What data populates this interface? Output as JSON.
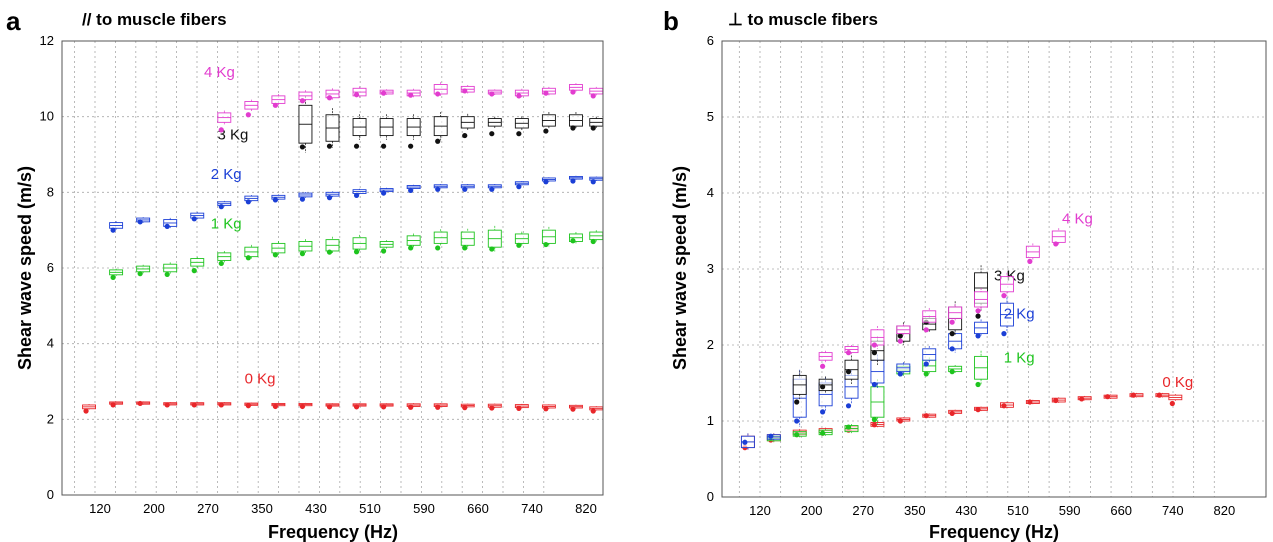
{
  "chart_data": [
    {
      "type": "box",
      "panel": "a",
      "title": "// to muscle fibers",
      "xlabel": "Frequency (Hz)",
      "ylabel": "Shear wave speed (m/s)",
      "ylim": [
        0,
        12
      ],
      "yticks": [
        0,
        2,
        4,
        6,
        8,
        10,
        12
      ],
      "xlim": [
        80,
        880
      ],
      "xticks": [
        "120",
        "200",
        "270",
        "350",
        "430",
        "510",
        "590",
        "660",
        "740",
        "820"
      ],
      "grid": true,
      "series": [
        {
          "name": "0 Kg",
          "color": "#e8262a",
          "label_at": [
            350,
            2.95
          ],
          "x": [
            120,
            160,
            200,
            240,
            280,
            320,
            360,
            400,
            440,
            480,
            520,
            560,
            600,
            640,
            680,
            720,
            760,
            800,
            840,
            870
          ],
          "boxes": [
            [
              2.28,
              2.38
            ],
            [
              2.4,
              2.46
            ],
            [
              2.4,
              2.46
            ],
            [
              2.38,
              2.44
            ],
            [
              2.38,
              2.44
            ],
            [
              2.38,
              2.44
            ],
            [
              2.37,
              2.43
            ],
            [
              2.36,
              2.42
            ],
            [
              2.36,
              2.42
            ],
            [
              2.35,
              2.41
            ],
            [
              2.35,
              2.41
            ],
            [
              2.35,
              2.41
            ],
            [
              2.34,
              2.41
            ],
            [
              2.34,
              2.41
            ],
            [
              2.33,
              2.4
            ],
            [
              2.32,
              2.4
            ],
            [
              2.31,
              2.39
            ],
            [
              2.3,
              2.38
            ],
            [
              2.3,
              2.37
            ],
            [
              2.25,
              2.33
            ]
          ],
          "points": [
            2.22,
            2.38,
            2.42,
            2.38,
            2.38,
            2.38,
            2.36,
            2.34,
            2.34,
            2.33,
            2.33,
            2.33,
            2.32,
            2.32,
            2.31,
            2.3,
            2.29,
            2.28,
            2.27,
            2.22
          ]
        },
        {
          "name": "1 Kg",
          "color": "#1ec41e",
          "label_at": [
            300,
            7.05
          ],
          "x": [
            160,
            200,
            240,
            280,
            320,
            360,
            400,
            440,
            480,
            520,
            560,
            600,
            640,
            680,
            720,
            760,
            800,
            840,
            870
          ],
          "boxes": [
            [
              5.82,
              5.95
            ],
            [
              5.9,
              6.05
            ],
            [
              5.9,
              6.1
            ],
            [
              6.05,
              6.25
            ],
            [
              6.2,
              6.4
            ],
            [
              6.3,
              6.55
            ],
            [
              6.4,
              6.65
            ],
            [
              6.45,
              6.7
            ],
            [
              6.45,
              6.75
            ],
            [
              6.5,
              6.8
            ],
            [
              6.55,
              6.7
            ],
            [
              6.6,
              6.85
            ],
            [
              6.65,
              6.95
            ],
            [
              6.6,
              6.95
            ],
            [
              6.55,
              7.0
            ],
            [
              6.65,
              6.9
            ],
            [
              6.65,
              7.0
            ],
            [
              6.7,
              6.9
            ],
            [
              6.75,
              6.95
            ]
          ],
          "points": [
            5.75,
            5.85,
            5.83,
            5.93,
            6.12,
            6.27,
            6.35,
            6.38,
            6.42,
            6.43,
            6.45,
            6.53,
            6.53,
            6.53,
            6.5,
            6.6,
            6.62,
            6.72,
            6.7
          ]
        },
        {
          "name": "2 Kg",
          "color": "#1b3fd6",
          "label_at": [
            300,
            8.35
          ],
          "x": [
            160,
            200,
            240,
            280,
            320,
            360,
            400,
            440,
            480,
            520,
            560,
            600,
            640,
            680,
            720,
            760,
            800,
            840,
            870
          ],
          "boxes": [
            [
              7.05,
              7.2
            ],
            [
              7.22,
              7.32
            ],
            [
              7.1,
              7.28
            ],
            [
              7.32,
              7.45
            ],
            [
              7.65,
              7.75
            ],
            [
              7.78,
              7.9
            ],
            [
              7.82,
              7.92
            ],
            [
              7.88,
              7.98
            ],
            [
              7.9,
              8.0
            ],
            [
              7.97,
              8.07
            ],
            [
              8.02,
              8.1
            ],
            [
              8.1,
              8.18
            ],
            [
              8.12,
              8.2
            ],
            [
              8.12,
              8.2
            ],
            [
              8.12,
              8.2
            ],
            [
              8.2,
              8.28
            ],
            [
              8.3,
              8.38
            ],
            [
              8.35,
              8.42
            ],
            [
              8.32,
              8.4
            ]
          ],
          "points": [
            7.0,
            7.22,
            7.1,
            7.3,
            7.62,
            7.75,
            7.8,
            7.82,
            7.86,
            7.92,
            7.98,
            8.05,
            8.08,
            8.08,
            8.08,
            8.15,
            8.28,
            8.3,
            8.28
          ]
        },
        {
          "name": "3 Kg",
          "color": "#111111",
          "label_at": [
            310,
            9.4
          ],
          "x": [
            440,
            480,
            520,
            560,
            600,
            640,
            680,
            720,
            760,
            800,
            840,
            870
          ],
          "boxes": [
            [
              9.3,
              10.3
            ],
            [
              9.35,
              10.05
            ],
            [
              9.5,
              9.95
            ],
            [
              9.5,
              9.95
            ],
            [
              9.5,
              9.95
            ],
            [
              9.5,
              10.0
            ],
            [
              9.7,
              10.0
            ],
            [
              9.75,
              9.95
            ],
            [
              9.7,
              9.95
            ],
            [
              9.75,
              10.05
            ],
            [
              9.75,
              10.05
            ],
            [
              9.75,
              9.95
            ]
          ],
          "points": [
            9.2,
            9.22,
            9.22,
            9.22,
            9.22,
            9.35,
            9.5,
            9.55,
            9.55,
            9.62,
            9.7,
            9.7
          ]
        },
        {
          "name": "4 Kg",
          "color": "#e23ccf",
          "label_at": [
            290,
            11.05
          ],
          "x": [
            320,
            360,
            400,
            440,
            480,
            520,
            560,
            600,
            640,
            680,
            720,
            760,
            800,
            840,
            870
          ],
          "boxes": [
            [
              9.85,
              10.1
            ],
            [
              10.2,
              10.4
            ],
            [
              10.35,
              10.55
            ],
            [
              10.45,
              10.65
            ],
            [
              10.5,
              10.7
            ],
            [
              10.55,
              10.75
            ],
            [
              10.6,
              10.7
            ],
            [
              10.55,
              10.7
            ],
            [
              10.6,
              10.85
            ],
            [
              10.65,
              10.8
            ],
            [
              10.6,
              10.7
            ],
            [
              10.55,
              10.7
            ],
            [
              10.6,
              10.75
            ],
            [
              10.7,
              10.85
            ],
            [
              10.6,
              10.75
            ]
          ],
          "points": [
            9.65,
            10.05,
            10.3,
            10.42,
            10.5,
            10.58,
            10.62,
            10.57,
            10.6,
            10.68,
            10.6,
            10.55,
            10.62,
            10.65,
            10.55
          ]
        }
      ]
    },
    {
      "type": "box",
      "panel": "b",
      "title": "⊥ to muscle fibers",
      "xlabel": "Frequency (Hz)",
      "ylabel": "Shear wave speed (m/s)",
      "ylim": [
        0,
        6
      ],
      "yticks": [
        0,
        1,
        2,
        3,
        4,
        5,
        6
      ],
      "xlim": [
        40,
        880
      ],
      "xticks": [
        "120",
        "200",
        "270",
        "350",
        "430",
        "510",
        "590",
        "660",
        "740",
        "820"
      ],
      "grid": true,
      "series": [
        {
          "name": "0 Kg",
          "color": "#e8262a",
          "label_at": [
            720,
            1.45
          ],
          "x": [
            80,
            120,
            160,
            200,
            240,
            280,
            320,
            360,
            400,
            440,
            480,
            520,
            560,
            600,
            640,
            680,
            720,
            740
          ],
          "boxes": [
            [
              0.65,
              0.8
            ],
            [
              0.74,
              0.82
            ],
            [
              0.82,
              0.88
            ],
            [
              0.85,
              0.9
            ],
            [
              0.88,
              0.93
            ],
            [
              0.93,
              0.98
            ],
            [
              1.0,
              1.04
            ],
            [
              1.05,
              1.09
            ],
            [
              1.1,
              1.14
            ],
            [
              1.14,
              1.18
            ],
            [
              1.18,
              1.24
            ],
            [
              1.23,
              1.27
            ],
            [
              1.25,
              1.3
            ],
            [
              1.28,
              1.32
            ],
            [
              1.3,
              1.34
            ],
            [
              1.32,
              1.36
            ],
            [
              1.32,
              1.36
            ],
            [
              1.28,
              1.34
            ]
          ],
          "points": [
            0.65,
            0.75,
            0.82,
            0.84,
            0.88,
            0.95,
            1.0,
            1.07,
            1.1,
            1.15,
            1.2,
            1.25,
            1.27,
            1.29,
            1.32,
            1.34,
            1.34,
            1.23
          ]
        },
        {
          "name": "1 Kg",
          "color": "#1ec41e",
          "label_at": [
            475,
            1.77
          ],
          "x": [
            120,
            160,
            200,
            240,
            280,
            320,
            360,
            400,
            440
          ],
          "boxes": [
            [
              0.74,
              0.8
            ],
            [
              0.8,
              0.86
            ],
            [
              0.82,
              0.88
            ],
            [
              0.86,
              0.94
            ],
            [
              1.05,
              1.45
            ],
            [
              1.62,
              1.72
            ],
            [
              1.65,
              1.8
            ],
            [
              1.65,
              1.72
            ],
            [
              1.55,
              1.85
            ]
          ],
          "points": [
            0.78,
            0.82,
            0.84,
            0.92,
            1.02,
            1.62,
            1.62,
            1.65,
            1.48
          ]
        },
        {
          "name": "2 Kg",
          "color": "#1b3fd6",
          "label_at": [
            475,
            2.35
          ],
          "x": [
            80,
            120,
            160,
            200,
            240,
            280,
            320,
            360,
            400,
            440,
            480
          ],
          "boxes": [
            [
              0.65,
              0.8
            ],
            [
              0.76,
              0.82
            ],
            [
              1.05,
              1.55
            ],
            [
              1.2,
              1.5
            ],
            [
              1.3,
              1.6
            ],
            [
              1.5,
              1.8
            ],
            [
              1.65,
              1.75
            ],
            [
              1.8,
              1.95
            ],
            [
              1.95,
              2.15
            ],
            [
              2.15,
              2.3
            ],
            [
              2.25,
              2.55
            ]
          ],
          "points": [
            0.72,
            0.8,
            1.0,
            1.12,
            1.2,
            1.48,
            1.62,
            1.75,
            1.95,
            2.12,
            2.15
          ]
        },
        {
          "name": "3 Kg",
          "color": "#111111",
          "label_at": [
            460,
            2.85
          ],
          "x": [
            160,
            200,
            240,
            280,
            320,
            360,
            400,
            440
          ],
          "boxes": [
            [
              1.35,
              1.6
            ],
            [
              1.4,
              1.55
            ],
            [
              1.55,
              1.8
            ],
            [
              1.8,
              2.05
            ],
            [
              2.05,
              2.25
            ],
            [
              2.2,
              2.35
            ],
            [
              2.2,
              2.5
            ],
            [
              2.55,
              2.95
            ]
          ],
          "points": [
            1.25,
            1.45,
            1.65,
            1.9,
            2.12,
            2.3,
            2.15,
            2.38
          ]
        },
        {
          "name": "4 Kg",
          "color": "#e23ccf",
          "label_at": [
            565,
            3.6
          ],
          "x": [
            200,
            240,
            280,
            320,
            360,
            400,
            440,
            480,
            520,
            560
          ],
          "boxes": [
            [
              1.8,
              1.9
            ],
            [
              1.9,
              1.98
            ],
            [
              2.0,
              2.2
            ],
            [
              2.15,
              2.25
            ],
            [
              2.3,
              2.45
            ],
            [
              2.35,
              2.5
            ],
            [
              2.5,
              2.7
            ],
            [
              2.7,
              2.9
            ],
            [
              3.15,
              3.3
            ],
            [
              3.35,
              3.5
            ]
          ],
          "points": [
            1.72,
            1.9,
            2.0,
            2.05,
            2.2,
            2.3,
            2.45,
            2.65,
            3.1,
            3.33
          ]
        }
      ]
    }
  ]
}
